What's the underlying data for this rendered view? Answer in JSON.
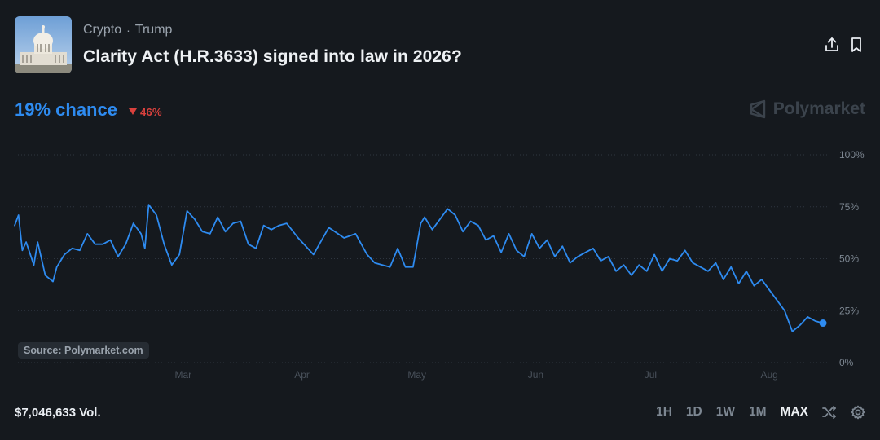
{
  "breadcrumb": {
    "category": "Crypto",
    "separator": "·",
    "tag": "Trump"
  },
  "market": {
    "title": "Clarity Act (H.R.3633) signed into law in 2026?"
  },
  "probability": {
    "chance_label": "19% chance",
    "change_label": "46%",
    "direction": "down"
  },
  "brand": {
    "name": "Polymarket"
  },
  "source_label": "Source: Polymarket.com",
  "volume_label": "$7,046,633 Vol.",
  "time_ranges": [
    "1H",
    "1D",
    "1W",
    "1M",
    "MAX"
  ],
  "active_range": "MAX",
  "colors": {
    "line": "#2e8bf0",
    "negative": "#d9413d",
    "background": "#15191e"
  },
  "icons": [
    "share-icon",
    "bookmark-icon",
    "shuffle-icon",
    "settings-icon",
    "caret-down-icon",
    "polymarket-logo-icon"
  ],
  "chart_data": {
    "type": "line",
    "ylim": [
      0,
      100
    ],
    "y_ticks": [
      0,
      25,
      50,
      75,
      100
    ],
    "y_tick_labels": [
      "0%",
      "25%",
      "50%",
      "75%",
      "100%"
    ],
    "x_tick_labels": [
      "Mar",
      "Apr",
      "May",
      "Jun",
      "Jul",
      "Aug"
    ],
    "x_tick_dates": [
      "2026-03-01",
      "2026-04-01",
      "2026-05-01",
      "2026-06-01",
      "2026-07-01",
      "2026-08-01"
    ],
    "grid": true,
    "series": [
      {
        "x": [
          "2026-01-16",
          "2026-01-17",
          "2026-01-18",
          "2026-01-19",
          "2026-01-21",
          "2026-01-22",
          "2026-01-24",
          "2026-01-26",
          "2026-01-27",
          "2026-01-29",
          "2026-01-31",
          "2026-02-02",
          "2026-02-04",
          "2026-02-06",
          "2026-02-08",
          "2026-02-10",
          "2026-02-12",
          "2026-02-14",
          "2026-02-16",
          "2026-02-18",
          "2026-02-19",
          "2026-02-20",
          "2026-02-22",
          "2026-02-24",
          "2026-02-26",
          "2026-02-28",
          "2026-03-02",
          "2026-03-04",
          "2026-03-06",
          "2026-03-08",
          "2026-03-10",
          "2026-03-12",
          "2026-03-14",
          "2026-03-16",
          "2026-03-18",
          "2026-03-20",
          "2026-03-22",
          "2026-03-24",
          "2026-03-26",
          "2026-03-28",
          "2026-03-31",
          "2026-04-04",
          "2026-04-08",
          "2026-04-12",
          "2026-04-15",
          "2026-04-18",
          "2026-04-20",
          "2026-04-22",
          "2026-04-24",
          "2026-04-26",
          "2026-04-28",
          "2026-04-30",
          "2026-05-02",
          "2026-05-03",
          "2026-05-05",
          "2026-05-07",
          "2026-05-09",
          "2026-05-11",
          "2026-05-13",
          "2026-05-15",
          "2026-05-17",
          "2026-05-19",
          "2026-05-21",
          "2026-05-23",
          "2026-05-25",
          "2026-05-27",
          "2026-05-29",
          "2026-05-31",
          "2026-06-02",
          "2026-06-04",
          "2026-06-06",
          "2026-06-08",
          "2026-06-10",
          "2026-06-12",
          "2026-06-14",
          "2026-06-16",
          "2026-06-18",
          "2026-06-20",
          "2026-06-22",
          "2026-06-24",
          "2026-06-26",
          "2026-06-28",
          "2026-06-30",
          "2026-07-02",
          "2026-07-04",
          "2026-07-06",
          "2026-07-08",
          "2026-07-10",
          "2026-07-12",
          "2026-07-14",
          "2026-07-16",
          "2026-07-18",
          "2026-07-20",
          "2026-07-22",
          "2026-07-24",
          "2026-07-26",
          "2026-07-28",
          "2026-07-30",
          "2026-08-01",
          "2026-08-03",
          "2026-08-05",
          "2026-08-07",
          "2026-08-09",
          "2026-08-11",
          "2026-08-13",
          "2026-08-15"
        ],
        "values": [
          66,
          71,
          54,
          58,
          47,
          58,
          42,
          39,
          46,
          52,
          55,
          54,
          62,
          57,
          57,
          59,
          51,
          57,
          67,
          62,
          55,
          76,
          71,
          57,
          47,
          52,
          73,
          69,
          63,
          62,
          70,
          63,
          67,
          68,
          57,
          55,
          66,
          64,
          66,
          67,
          60,
          52,
          65,
          60,
          62,
          52,
          48,
          47,
          46,
          55,
          46,
          46,
          67,
          70,
          64,
          69,
          74,
          71,
          63,
          68,
          66,
          59,
          61,
          53,
          62,
          54,
          51,
          62,
          55,
          59,
          51,
          56,
          48,
          51,
          53,
          55,
          49,
          51,
          44,
          47,
          42,
          47,
          44,
          52,
          44,
          50,
          49,
          54,
          48,
          46,
          44,
          48,
          40,
          46,
          38,
          44,
          37,
          40,
          35,
          30,
          25,
          15,
          18,
          22,
          20,
          19
        ]
      }
    ]
  }
}
